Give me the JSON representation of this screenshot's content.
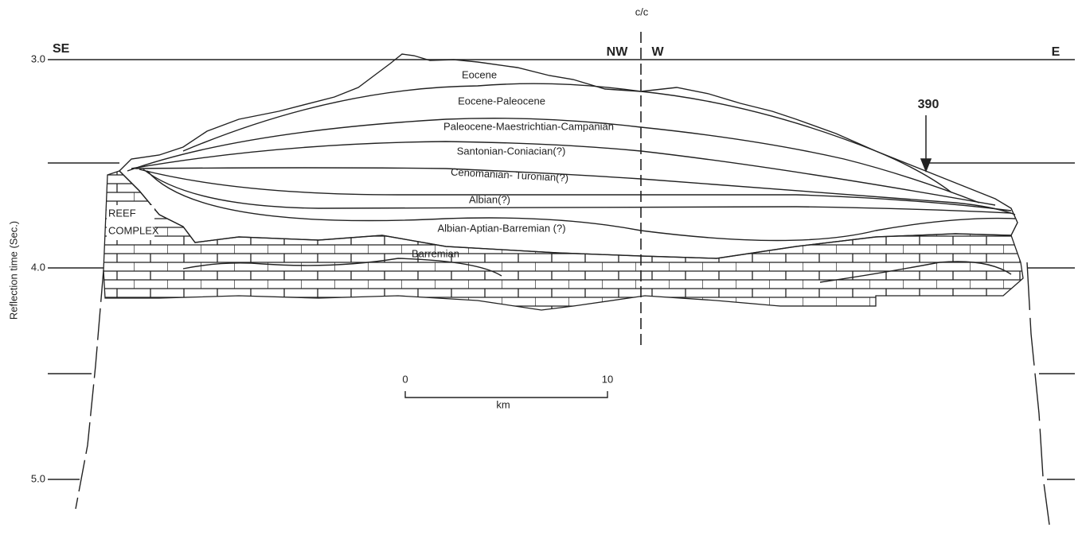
{
  "axis": {
    "label": "Reflection time (Sec.)",
    "ticks": [
      "3.0",
      "4.0",
      "5.0"
    ]
  },
  "section_label": "c/c",
  "directions": {
    "left": "SE",
    "center_left": "NW",
    "center_right": "W",
    "right": "E"
  },
  "site": "390",
  "layers": [
    "Eocene",
    "Eocene-Paleocene",
    "Paleocene-Maestrichtian-Campanian",
    "Santonian-Coniacian(?)",
    "Cenomanian- Turonian(?)",
    "Albian(?)",
    "Albian-Aptian-Barremian (?)",
    "Barremian"
  ],
  "reef": [
    "REEF",
    "COMPLEX"
  ],
  "scale": {
    "start": "0",
    "end": "10",
    "unit": "km"
  }
}
